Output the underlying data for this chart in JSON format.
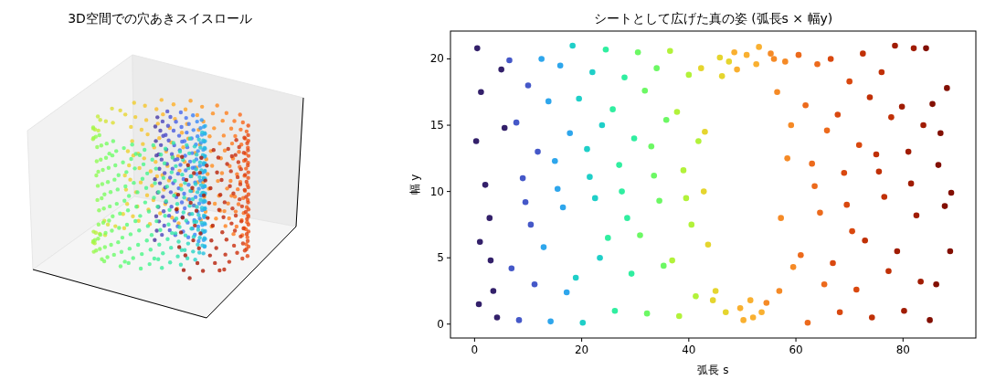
{
  "chart_data": [
    {
      "type": "other",
      "title": "3D空間での穴あきスイスロール"
    },
    {
      "type": "scatter",
      "title": "シートとして広げた真の姿 (弧長s × 幅y)",
      "xlabel": "弧長 s",
      "ylabel": "幅 y",
      "xlim": [
        -4.5,
        93.6
      ],
      "ylim": [
        -1.05,
        22.1
      ],
      "xticks": [
        0,
        20,
        40,
        60,
        80
      ],
      "yticks": [
        0,
        5,
        10,
        15,
        20
      ],
      "grid": false,
      "marker": "circle",
      "series": [
        {
          "color": "#33206a",
          "x": [
            0.5,
            1.2,
            0.3,
            2.0,
            1.0,
            3.5,
            4.2,
            5.0,
            2.8,
            5.6,
            0.8,
            3.0
          ],
          "values": [
            20.8,
            17.5,
            13.8,
            10.5,
            6.2,
            2.5,
            0.5,
            19.2,
            8.0,
            14.8,
            1.5,
            4.8
          ]
        },
        {
          "color": "#4558c8",
          "x": [
            6.5,
            7.8,
            9.0,
            10.5,
            11.2,
            8.3,
            6.9,
            10.0,
            11.8,
            9.5
          ],
          "values": [
            19.9,
            15.2,
            11.0,
            7.5,
            3.0,
            0.3,
            4.2,
            18.0,
            13.0,
            9.2
          ]
        },
        {
          "color": "#2ea6ec",
          "x": [
            12.5,
            13.8,
            15.0,
            16.5,
            17.2,
            14.2,
            12.9,
            16.0,
            17.8,
            15.5
          ],
          "values": [
            20.0,
            16.8,
            12.3,
            8.8,
            2.4,
            0.2,
            5.8,
            19.5,
            14.4,
            10.2
          ]
        },
        {
          "color": "#1fcfc8",
          "x": [
            18.3,
            19.5,
            21.0,
            22.5,
            23.4,
            20.2,
            18.9,
            22.0,
            23.8,
            21.5
          ],
          "values": [
            21.0,
            17.0,
            13.2,
            9.5,
            5.0,
            0.1,
            3.5,
            19.0,
            15.0,
            11.1
          ]
        },
        {
          "color": "#30eea0",
          "x": [
            24.5,
            25.8,
            27.0,
            28.5,
            29.3,
            26.2,
            24.9,
            28.0,
            29.8,
            27.5
          ],
          "values": [
            20.7,
            16.2,
            12.0,
            8.0,
            3.8,
            1.0,
            6.5,
            18.6,
            14.0,
            10.0
          ]
        },
        {
          "color": "#6cf864",
          "x": [
            30.5,
            31.8,
            33.0,
            34.5,
            35.3,
            32.2,
            30.9,
            34.0,
            35.8,
            33.5
          ],
          "values": [
            20.5,
            17.6,
            13.4,
            9.3,
            4.4,
            0.8,
            6.7,
            19.3,
            15.4,
            11.2
          ]
        },
        {
          "color": "#b2f23a",
          "x": [
            36.5,
            37.8,
            39.0,
            40.5,
            41.3,
            38.2,
            36.9,
            40.0,
            41.8,
            39.5
          ],
          "values": [
            20.6,
            16.0,
            11.6,
            7.5,
            2.1,
            0.6,
            4.8,
            18.8,
            13.8,
            9.5
          ]
        },
        {
          "color": "#e5d52e",
          "x": [
            42.3,
            43.0,
            43.6,
            44.5,
            45.8,
            46.9,
            47.5,
            42.8,
            45.0,
            46.2
          ],
          "values": [
            19.3,
            14.5,
            6.0,
            1.8,
            20.1,
            0.9,
            19.8,
            10.0,
            2.5,
            18.7
          ]
        },
        {
          "color": "#f9b030",
          "x": [
            48.5,
            49.6,
            50.8,
            52.0,
            53.1,
            49.0,
            51.5,
            53.6,
            50.2,
            52.6
          ],
          "values": [
            20.5,
            1.2,
            20.3,
            0.5,
            20.9,
            19.2,
            1.8,
            0.9,
            0.3,
            19.6
          ]
        },
        {
          "color": "#f58a26",
          "x": [
            54.5,
            55.3,
            56.5,
            57.2,
            58.4,
            59.5,
            56.9,
            58.0,
            59.1,
            55.9
          ],
          "values": [
            1.6,
            20.4,
            17.5,
            8.0,
            12.5,
            4.3,
            2.5,
            19.8,
            15.0,
            20.0
          ]
        },
        {
          "color": "#ec6a1c",
          "x": [
            60.5,
            61.8,
            63.0,
            64.5,
            65.3,
            62.2,
            60.9,
            64.0,
            65.8,
            63.5
          ],
          "values": [
            20.3,
            16.5,
            12.1,
            8.4,
            3.0,
            0.1,
            5.2,
            19.6,
            14.6,
            10.4
          ]
        },
        {
          "color": "#d9480f",
          "x": [
            66.5,
            67.8,
            69.0,
            70.5,
            71.3,
            68.2,
            66.9,
            70.0,
            71.8,
            69.5
          ],
          "values": [
            20.0,
            15.8,
            11.4,
            7.0,
            2.6,
            0.9,
            4.6,
            18.3,
            13.5,
            9.0
          ]
        },
        {
          "color": "#c03006",
          "x": [
            72.5,
            73.8,
            75.0,
            76.5,
            77.3,
            74.2,
            72.9,
            76.0,
            77.8,
            75.5
          ],
          "values": [
            20.4,
            17.1,
            12.8,
            9.6,
            4.0,
            0.5,
            6.3,
            19.0,
            15.6,
            11.5
          ]
        },
        {
          "color": "#a01c03",
          "x": [
            78.5,
            79.8,
            81.0,
            82.5,
            83.3,
            80.2,
            78.9,
            82.0,
            83.8,
            81.5
          ],
          "values": [
            21.0,
            16.4,
            13.0,
            8.2,
            3.2,
            1.0,
            5.5,
            20.8,
            15.0,
            10.6
          ]
        },
        {
          "color": "#820f02",
          "x": [
            84.3,
            85.5,
            86.6,
            87.8,
            88.8,
            85.0,
            86.2,
            88.2,
            87.0,
            89.0
          ],
          "values": [
            20.8,
            16.6,
            12.0,
            8.9,
            5.5,
            0.3,
            3.0,
            17.8,
            14.4,
            9.9
          ]
        }
      ]
    }
  ]
}
